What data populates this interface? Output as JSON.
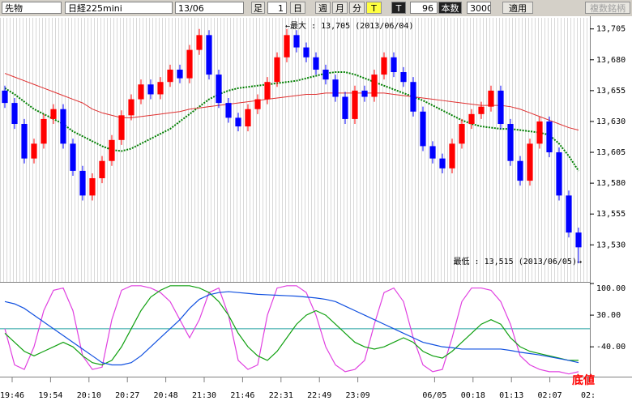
{
  "toolbar": {
    "market": "先物",
    "symbol": "日経225mini",
    "month": "13/06",
    "bar_label": "足",
    "bar_count": "1",
    "periods": [
      "日",
      "週",
      "月",
      "分",
      "T"
    ],
    "tick": "T",
    "count": "96",
    "count_label": "本数",
    "max_bars": "3000",
    "apply": "適用",
    "multi": "複数銘柄"
  },
  "chart_data": [
    {
      "type": "candlestick",
      "max_label": "←最大 : 13,705 (2013/06/04)",
      "min_label": "最低 : 13,515 (2013/06/05)→",
      "up_color": "#ff0000",
      "down_color": "#0000ff",
      "ylim": [
        13500,
        13714
      ],
      "yticks": [
        {
          "value": 13705,
          "label": "13,705"
        },
        {
          "value": 13680,
          "label": "13,680"
        },
        {
          "value": 13655,
          "label": "13,655"
        },
        {
          "value": 13630,
          "label": "13,630"
        },
        {
          "value": 13605,
          "label": "13,605"
        },
        {
          "value": 13580,
          "label": "13,580"
        },
        {
          "value": 13555,
          "label": "13,555"
        },
        {
          "value": 13530,
          "label": "13,530"
        }
      ],
      "open": [
        13655,
        13645,
        13628,
        13600,
        13612,
        13632,
        13640,
        13612,
        13590,
        13570,
        13584,
        13598,
        13615,
        13635,
        13648,
        13660,
        13652,
        13662,
        13672,
        13665,
        13688,
        13700,
        13668,
        13645,
        13633,
        13626,
        13640,
        13648,
        13662,
        13682,
        13700,
        13690,
        13682,
        13672,
        13664,
        13650,
        13632,
        13655,
        13650,
        13668,
        13682,
        13670,
        13662,
        13638,
        13610,
        13600,
        13592,
        13612,
        13628,
        13636,
        13642,
        13655,
        13628,
        13598,
        13582,
        13612,
        13630,
        13605,
        13570,
        13540
      ],
      "high": [
        13659,
        13649,
        13632,
        13616,
        13636,
        13644,
        13644,
        13616,
        13594,
        13588,
        13602,
        13619,
        13639,
        13652,
        13664,
        13664,
        13666,
        13676,
        13676,
        13692,
        13705,
        13704,
        13672,
        13649,
        13637,
        13644,
        13652,
        13666,
        13686,
        13705,
        13704,
        13694,
        13686,
        13676,
        13668,
        13654,
        13659,
        13659,
        13672,
        13686,
        13686,
        13674,
        13666,
        13642,
        13614,
        13604,
        13616,
        13632,
        13640,
        13646,
        13659,
        13659,
        13632,
        13602,
        13616,
        13634,
        13634,
        13609,
        13574,
        13544
      ],
      "low": [
        13641,
        13624,
        13596,
        13596,
        13608,
        13628,
        13608,
        13586,
        13566,
        13566,
        13580,
        13594,
        13611,
        13631,
        13644,
        13648,
        13648,
        13658,
        13661,
        13661,
        13684,
        13664,
        13641,
        13629,
        13622,
        13622,
        13636,
        13644,
        13658,
        13678,
        13686,
        13678,
        13668,
        13660,
        13646,
        13628,
        13628,
        13646,
        13646,
        13664,
        13666,
        13658,
        13634,
        13606,
        13596,
        13588,
        13588,
        13608,
        13624,
        13632,
        13638,
        13624,
        13594,
        13578,
        13578,
        13608,
        13601,
        13566,
        13536,
        13515
      ],
      "close": [
        13645,
        13628,
        13600,
        13612,
        13632,
        13640,
        13612,
        13590,
        13570,
        13584,
        13598,
        13615,
        13635,
        13648,
        13660,
        13652,
        13662,
        13672,
        13665,
        13688,
        13700,
        13668,
        13645,
        13633,
        13626,
        13640,
        13648,
        13662,
        13682,
        13700,
        13690,
        13682,
        13672,
        13664,
        13650,
        13632,
        13655,
        13650,
        13668,
        13682,
        13670,
        13662,
        13638,
        13610,
        13600,
        13592,
        13612,
        13628,
        13636,
        13642,
        13655,
        13628,
        13598,
        13582,
        13612,
        13630,
        13605,
        13570,
        13540,
        13528
      ],
      "overlays": [
        {
          "color": "#008000",
          "line_style": "dotted",
          "values": [
            13657,
            13652,
            13646,
            13640,
            13636,
            13632,
            13628,
            13622,
            13618,
            13614,
            13610,
            13607,
            13606,
            13608,
            13612,
            13616,
            13620,
            13624,
            13630,
            13636,
            13642,
            13648,
            13652,
            13655,
            13657,
            13658,
            13659,
            13660,
            13661,
            13662,
            13663,
            13665,
            13667,
            13669,
            13670,
            13670,
            13668,
            13665,
            13662,
            13659,
            13656,
            13653,
            13650,
            13647,
            13643,
            13639,
            13635,
            13631,
            13628,
            13626,
            13625,
            13624,
            13624,
            13623,
            13622,
            13621,
            13619,
            13612,
            13602,
            13590
          ]
        },
        {
          "color": "#e03030",
          "line_style": "solid",
          "values": [
            13669,
            13666,
            13663,
            13660,
            13657,
            13654,
            13651,
            13648,
            13645,
            13640,
            13637,
            13635,
            13633,
            13633,
            13634,
            13635,
            13636,
            13637,
            13638,
            13640,
            13641,
            13642,
            13643,
            13644,
            13645,
            13646,
            13647,
            13648,
            13649,
            13650,
            13651,
            13652,
            13652,
            13653,
            13653,
            13653,
            13653,
            13653,
            13653,
            13653,
            13652,
            13651,
            13650,
            13649,
            13648,
            13647,
            13646,
            13645,
            13644,
            13643,
            13643,
            13643,
            13642,
            13640,
            13637,
            13634,
            13631,
            13628,
            13625,
            13623
          ]
        }
      ]
    },
    {
      "type": "line",
      "ylim": [
        -106,
        100
      ],
      "yticks": [
        {
          "value": 100,
          "label": "100.00"
        },
        {
          "value": 30,
          "label": "30.00"
        },
        {
          "value": -40,
          "label": "-40.00"
        }
      ],
      "reference_line": 0,
      "reference_color": "#20a0a0",
      "x_labels": [
        "19:46",
        "19:54",
        "20:10",
        "20:27",
        "20:48",
        "21:30",
        "21:46",
        "22:31",
        "22:49",
        "23:09",
        null,
        "06/05",
        "00:18",
        "01:13",
        "02:07",
        "02:"
      ],
      "marker": "底値",
      "series": [
        {
          "color": "#e040e0",
          "values": [
            0,
            -80,
            -90,
            -40,
            40,
            85,
            90,
            40,
            -60,
            -90,
            -85,
            20,
            85,
            95,
            95,
            90,
            80,
            60,
            20,
            -20,
            20,
            80,
            90,
            30,
            -70,
            -90,
            -80,
            30,
            90,
            95,
            95,
            80,
            30,
            -40,
            -80,
            -95,
            -90,
            -70,
            10,
            80,
            90,
            60,
            -20,
            -80,
            -95,
            -90,
            -20,
            60,
            90,
            90,
            85,
            60,
            10,
            -60,
            -80,
            -90,
            -95,
            -95,
            -100,
            -95
          ]
        },
        {
          "color": "#10a010",
          "values": [
            -10,
            -30,
            -50,
            -60,
            -50,
            -40,
            -30,
            -40,
            -60,
            -75,
            -80,
            -70,
            -40,
            0,
            40,
            70,
            85,
            95,
            95,
            95,
            90,
            80,
            60,
            30,
            -10,
            -40,
            -60,
            -70,
            -50,
            -20,
            10,
            30,
            40,
            30,
            10,
            -10,
            -30,
            -40,
            -45,
            -40,
            -30,
            -20,
            -30,
            -50,
            -60,
            -65,
            -50,
            -30,
            -10,
            10,
            20,
            10,
            -20,
            -40,
            -50,
            -55,
            -60,
            -65,
            -70,
            -70
          ]
        },
        {
          "color": "#1050e0",
          "values": [
            60,
            55,
            45,
            30,
            15,
            0,
            -15,
            -30,
            -45,
            -60,
            -75,
            -80,
            -80,
            -75,
            -60,
            -40,
            -20,
            0,
            20,
            45,
            65,
            75,
            80,
            82,
            80,
            78,
            76,
            75,
            74,
            73,
            72,
            70,
            68,
            65,
            60,
            50,
            40,
            30,
            20,
            10,
            0,
            -10,
            -20,
            -30,
            -35,
            -40,
            -42,
            -45,
            -45,
            -45,
            -45,
            -45,
            -48,
            -52,
            -55,
            -58,
            -62,
            -66,
            -70,
            -75
          ]
        }
      ]
    }
  ]
}
